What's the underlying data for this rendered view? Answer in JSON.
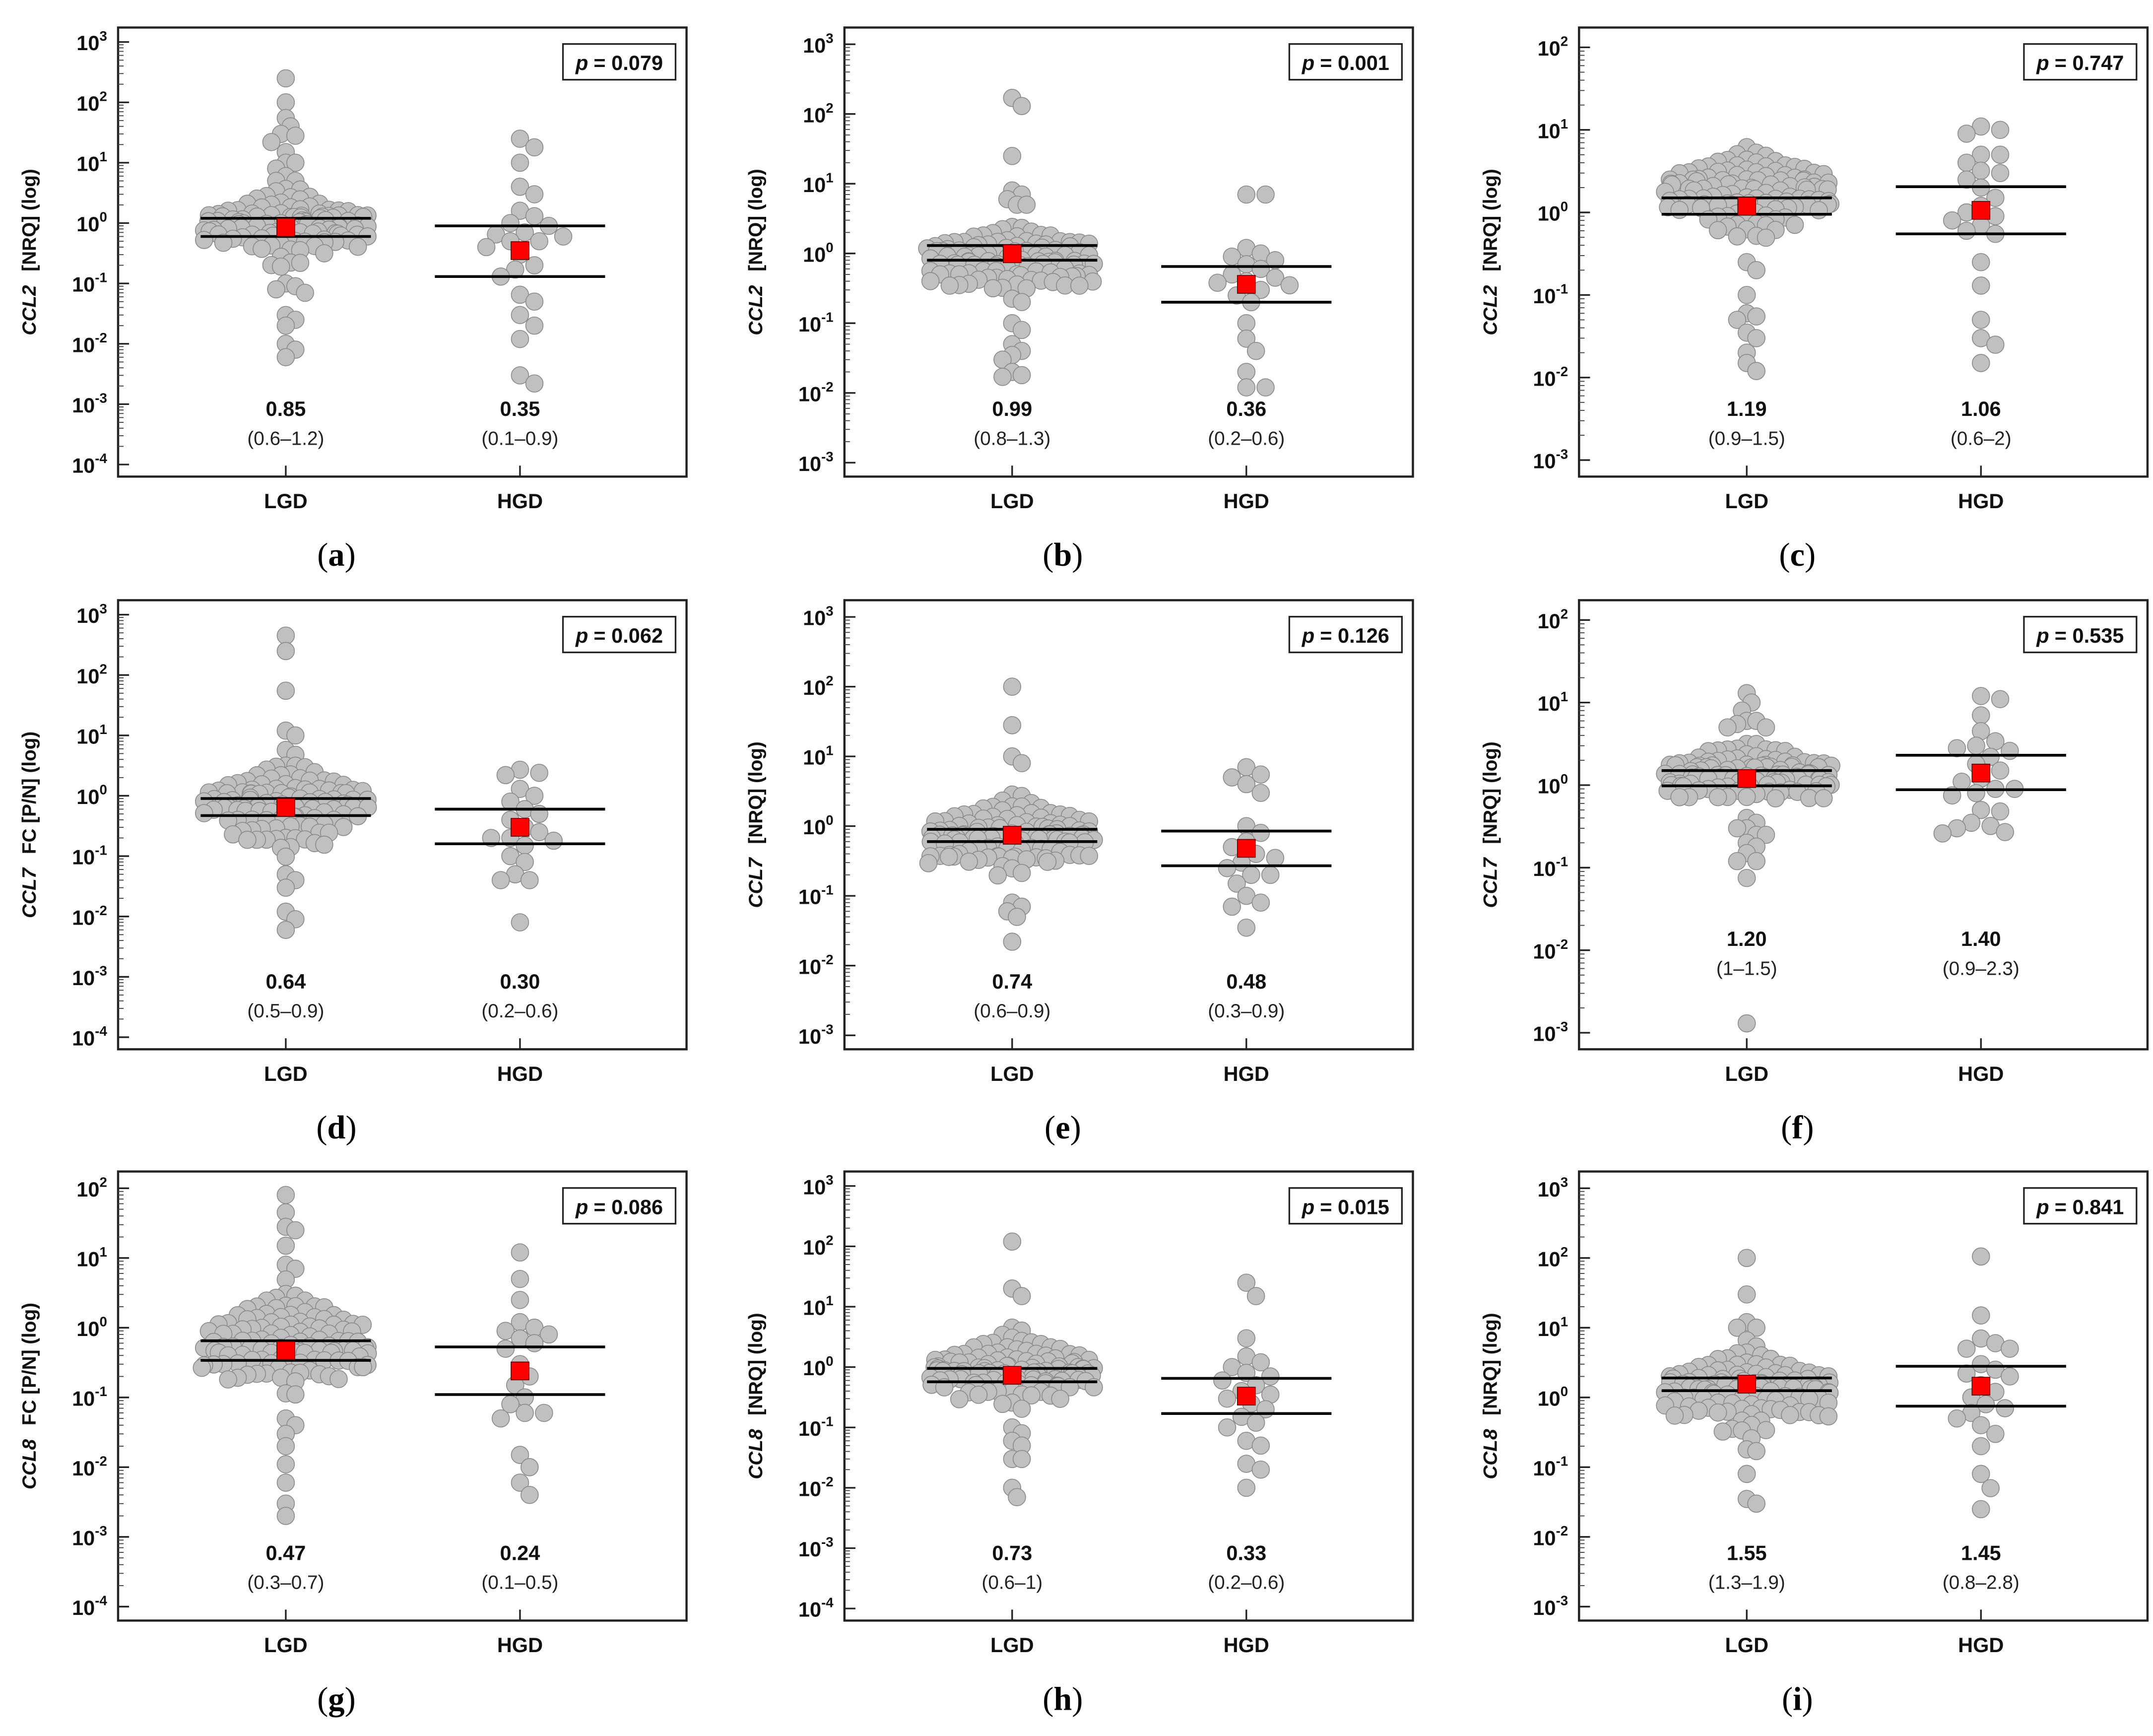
{
  "chart_data": [
    {
      "panel": "a",
      "type": "scatter",
      "gene": "CCL2",
      "unit": "[NRQ] (log)",
      "ylim": [
        0.0001,
        1000
      ],
      "p_label": "p",
      "p_value": "= 0.079",
      "categories": [
        "LGD",
        "HGD"
      ],
      "groups": [
        {
          "name": "LGD",
          "median": 0.85,
          "median_label": "0.85",
          "iqr": [
            0.6,
            1.2
          ],
          "iqr_label": "(0.6–1.2)",
          "dense_range": [
            0.15,
            5
          ],
          "dense_n": 110,
          "points": [
            250,
            100,
            55,
            40,
            30,
            28,
            22,
            15,
            10,
            10,
            8,
            6,
            5,
            5,
            0.1,
            0.09,
            0.08,
            0.07,
            0.03,
            0.025,
            0.02,
            0.01,
            0.008,
            0.006
          ]
        },
        {
          "name": "HGD",
          "median": 0.35,
          "median_label": "0.35",
          "iqr": [
            0.13,
            0.9
          ],
          "iqr_label": "(0.1–0.9)",
          "dense_range": null,
          "dense_n": 0,
          "points": [
            25,
            18,
            10,
            4,
            3,
            1.6,
            1.3,
            1.0,
            0.9,
            0.7,
            0.65,
            0.6,
            0.5,
            0.5,
            0.4,
            0.3,
            0.2,
            0.17,
            0.13,
            0.065,
            0.05,
            0.03,
            0.02,
            0.012,
            0.003,
            0.0022
          ]
        }
      ]
    },
    {
      "panel": "b",
      "type": "scatter",
      "gene": "CCL2",
      "unit": "[NRQ] (log)",
      "ylim": [
        0.001,
        1000
      ],
      "p_label": "p",
      "p_value": "= 0.001",
      "categories": [
        "LGD",
        "HGD"
      ],
      "groups": [
        {
          "name": "LGD",
          "median": 0.99,
          "median_label": "0.99",
          "iqr": [
            0.8,
            1.3
          ],
          "iqr_label": "(0.8–1.3)",
          "dense_range": [
            0.15,
            4
          ],
          "dense_n": 110,
          "points": [
            170,
            130,
            25,
            8,
            7,
            6,
            5,
            5,
            0.1,
            0.08,
            0.05,
            0.04,
            0.035,
            0.03,
            0.02,
            0.018,
            0.017
          ]
        },
        {
          "name": "HGD",
          "median": 0.36,
          "median_label": "0.36",
          "iqr": [
            0.2,
            0.65
          ],
          "iqr_label": "(0.2–0.6)",
          "dense_range": null,
          "dense_n": 0,
          "points": [
            7,
            7,
            1.2,
            1,
            0.9,
            0.8,
            0.7,
            0.6,
            0.5,
            0.45,
            0.4,
            0.38,
            0.35,
            0.3,
            0.25,
            0.2,
            0.1,
            0.06,
            0.04,
            0.02,
            0.012,
            0.012
          ]
        }
      ]
    },
    {
      "panel": "c",
      "type": "scatter",
      "gene": "CCL2",
      "unit": "[NRQ] (log)",
      "ylim": [
        0.001,
        100
      ],
      "p_label": "p",
      "p_value": "= 0.747",
      "categories": [
        "LGD",
        "HGD"
      ],
      "groups": [
        {
          "name": "LGD",
          "median": 1.19,
          "median_label": "1.19",
          "iqr": [
            0.95,
            1.5
          ],
          "iqr_label": "(0.9–1.5)",
          "dense_range": [
            0.4,
            8
          ],
          "dense_n": 120,
          "points": [
            0.25,
            0.2,
            0.1,
            0.06,
            0.055,
            0.05,
            0.035,
            0.03,
            0.02,
            0.015,
            0.012
          ]
        },
        {
          "name": "HGD",
          "median": 1.06,
          "median_label": "1.06",
          "iqr": [
            0.55,
            2.05
          ],
          "iqr_label": "(0.6–2)",
          "dense_range": null,
          "dense_n": 0,
          "points": [
            11,
            10,
            9,
            5,
            5,
            4,
            3.2,
            3,
            2.5,
            2,
            1.5,
            1.2,
            1,
            0.9,
            0.8,
            0.7,
            0.6,
            0.55,
            0.25,
            0.13,
            0.05,
            0.03,
            0.025,
            0.015
          ]
        }
      ]
    },
    {
      "panel": "d",
      "type": "scatter",
      "gene": "CCL7",
      "unit": "FC [P/N] (log)",
      "ylim": [
        0.0001,
        1000
      ],
      "p_label": "p",
      "p_value": "= 0.062",
      "categories": [
        "LGD",
        "HGD"
      ],
      "groups": [
        {
          "name": "LGD",
          "median": 0.64,
          "median_label": "0.64",
          "iqr": [
            0.47,
            0.9
          ],
          "iqr_label": "(0.5–0.9)",
          "dense_range": [
            0.06,
            8
          ],
          "dense_n": 120,
          "points": [
            450,
            250,
            55,
            12,
            10,
            0.05,
            0.04,
            0.03,
            0.012,
            0.009,
            0.006
          ]
        },
        {
          "name": "HGD",
          "median": 0.3,
          "median_label": "0.30",
          "iqr": [
            0.16,
            0.6
          ],
          "iqr_label": "(0.2–0.6)",
          "dense_range": null,
          "dense_n": 0,
          "points": [
            2.7,
            2.4,
            2.2,
            1.3,
            1.0,
            0.8,
            0.6,
            0.5,
            0.4,
            0.3,
            0.25,
            0.2,
            0.2,
            0.18,
            0.15,
            0.1,
            0.08,
            0.05,
            0.04,
            0.04,
            0.008
          ]
        }
      ]
    },
    {
      "panel": "e",
      "type": "scatter",
      "gene": "CCL7",
      "unit": "[NRQ] (log)",
      "ylim": [
        0.001,
        1000
      ],
      "p_label": "p",
      "p_value": "= 0.126",
      "categories": [
        "LGD",
        "HGD"
      ],
      "groups": [
        {
          "name": "LGD",
          "median": 0.74,
          "median_label": "0.74",
          "iqr": [
            0.6,
            0.9
          ],
          "iqr_label": "(0.6–0.9)",
          "dense_range": [
            0.1,
            4
          ],
          "dense_n": 120,
          "points": [
            100,
            28,
            10,
            8,
            0.08,
            0.07,
            0.06,
            0.05,
            0.022
          ]
        },
        {
          "name": "HGD",
          "median": 0.48,
          "median_label": "0.48",
          "iqr": [
            0.27,
            0.85
          ],
          "iqr_label": "(0.3–0.9)",
          "dense_range": null,
          "dense_n": 0,
          "points": [
            7,
            5.5,
            5,
            4,
            3,
            1,
            0.8,
            0.6,
            0.5,
            0.4,
            0.35,
            0.3,
            0.25,
            0.2,
            0.2,
            0.15,
            0.1,
            0.08,
            0.07,
            0.035
          ]
        }
      ]
    },
    {
      "panel": "f",
      "type": "scatter",
      "gene": "CCL7",
      "unit": "[NRQ] (log)",
      "ylim": [
        0.001,
        100
      ],
      "p_label": "p",
      "p_value": "= 0.535",
      "categories": [
        "LGD",
        "HGD"
      ],
      "groups": [
        {
          "name": "LGD",
          "median": 1.2,
          "median_label": "1.20",
          "iqr": [
            0.98,
            1.5
          ],
          "iqr_label": "(1–1.5)",
          "dense_range": [
            0.5,
            4
          ],
          "dense_n": 120,
          "points": [
            13,
            10,
            8,
            6,
            6,
            5.5,
            5,
            5,
            0.4,
            0.35,
            0.3,
            0.3,
            0.25,
            0.25,
            0.2,
            0.18,
            0.15,
            0.12,
            0.12,
            0.075,
            0.0013
          ]
        },
        {
          "name": "HGD",
          "median": 1.4,
          "median_label": "1.40",
          "iqr": [
            0.88,
            2.3
          ],
          "iqr_label": "(0.9–2.3)",
          "dense_range": null,
          "dense_n": 0,
          "points": [
            12,
            11,
            7,
            4.5,
            3.4,
            3,
            2.8,
            2.6,
            2.2,
            1.8,
            1.5,
            1.2,
            1.1,
            0.9,
            0.9,
            0.8,
            0.75,
            0.5,
            0.48,
            0.35,
            0.32,
            0.3,
            0.27,
            0.26
          ]
        }
      ]
    },
    {
      "panel": "g",
      "type": "scatter",
      "gene": "CCL8",
      "unit": "FC [P/N] (log)",
      "ylim": [
        0.0001,
        100
      ],
      "p_label": "p",
      "p_value": "= 0.086",
      "categories": [
        "LGD",
        "HGD"
      ],
      "groups": [
        {
          "name": "LGD",
          "median": 0.47,
          "median_label": "0.47",
          "iqr": [
            0.34,
            0.65
          ],
          "iqr_label": "(0.3–0.7)",
          "dense_range": [
            0.06,
            6
          ],
          "dense_n": 120,
          "points": [
            80,
            45,
            28,
            25,
            15,
            8,
            7,
            0.05,
            0.04,
            0.03,
            0.02,
            0.011,
            0.006,
            0.003,
            0.002
          ]
        },
        {
          "name": "HGD",
          "median": 0.24,
          "median_label": "0.24",
          "iqr": [
            0.11,
            0.53
          ],
          "iqr_label": "(0.1–0.5)",
          "dense_range": null,
          "dense_n": 0,
          "points": [
            12,
            5,
            2.5,
            1.2,
            1,
            0.9,
            0.8,
            0.7,
            0.6,
            0.5,
            0.3,
            0.2,
            0.15,
            0.1,
            0.08,
            0.06,
            0.06,
            0.05,
            0.015,
            0.01,
            0.006,
            0.004
          ]
        }
      ]
    },
    {
      "panel": "h",
      "type": "scatter",
      "gene": "CCL8",
      "unit": "[NRQ] (log)",
      "ylim": [
        0.0001,
        1000
      ],
      "p_label": "p",
      "p_value": "= 0.015",
      "categories": [
        "LGD",
        "HGD"
      ],
      "groups": [
        {
          "name": "LGD",
          "median": 0.73,
          "median_label": "0.73",
          "iqr": [
            0.57,
            0.95
          ],
          "iqr_label": "(0.6–1)",
          "dense_range": [
            0.15,
            6
          ],
          "dense_n": 120,
          "points": [
            120,
            20,
            15,
            0.1,
            0.08,
            0.06,
            0.05,
            0.03,
            0.03,
            0.01,
            0.007
          ]
        },
        {
          "name": "HGD",
          "median": 0.33,
          "median_label": "0.33",
          "iqr": [
            0.17,
            0.65
          ],
          "iqr_label": "(0.2–0.6)",
          "dense_range": null,
          "dense_n": 0,
          "points": [
            25,
            15,
            3,
            1.5,
            1.2,
            1,
            0.8,
            0.7,
            0.6,
            0.5,
            0.4,
            0.35,
            0.3,
            0.25,
            0.2,
            0.15,
            0.12,
            0.1,
            0.06,
            0.05,
            0.025,
            0.02,
            0.01
          ]
        }
      ]
    },
    {
      "panel": "i",
      "type": "scatter",
      "gene": "CCL8",
      "unit": "[NRQ] (log)",
      "ylim": [
        0.001,
        1000
      ],
      "p_label": "p",
      "p_value": "= 0.841",
      "categories": [
        "LGD",
        "HGD"
      ],
      "groups": [
        {
          "name": "LGD",
          "median": 1.55,
          "median_label": "1.55",
          "iqr": [
            1.25,
            1.9
          ],
          "iqr_label": "(1.3–1.9)",
          "dense_range": [
            0.2,
            8
          ],
          "dense_n": 120,
          "points": [
            100,
            30,
            12,
            10,
            10,
            0.18,
            0.17,
            0.08,
            0.035,
            0.03
          ]
        },
        {
          "name": "HGD",
          "median": 1.45,
          "median_label": "1.45",
          "iqr": [
            0.75,
            2.8
          ],
          "iqr_label": "(0.8–2.8)",
          "dense_range": null,
          "dense_n": 0,
          "points": [
            105,
            15,
            7,
            6,
            5,
            5,
            3,
            2.5,
            2.2,
            2,
            1.5,
            1.2,
            1,
            0.8,
            0.7,
            0.6,
            0.5,
            0.4,
            0.3,
            0.2,
            0.08,
            0.05,
            0.025
          ]
        }
      ]
    }
  ],
  "colors": {
    "point": "#c0c0c0",
    "point_stroke": "#8a8a8a",
    "median": "#ff0000",
    "line": "#000000"
  }
}
